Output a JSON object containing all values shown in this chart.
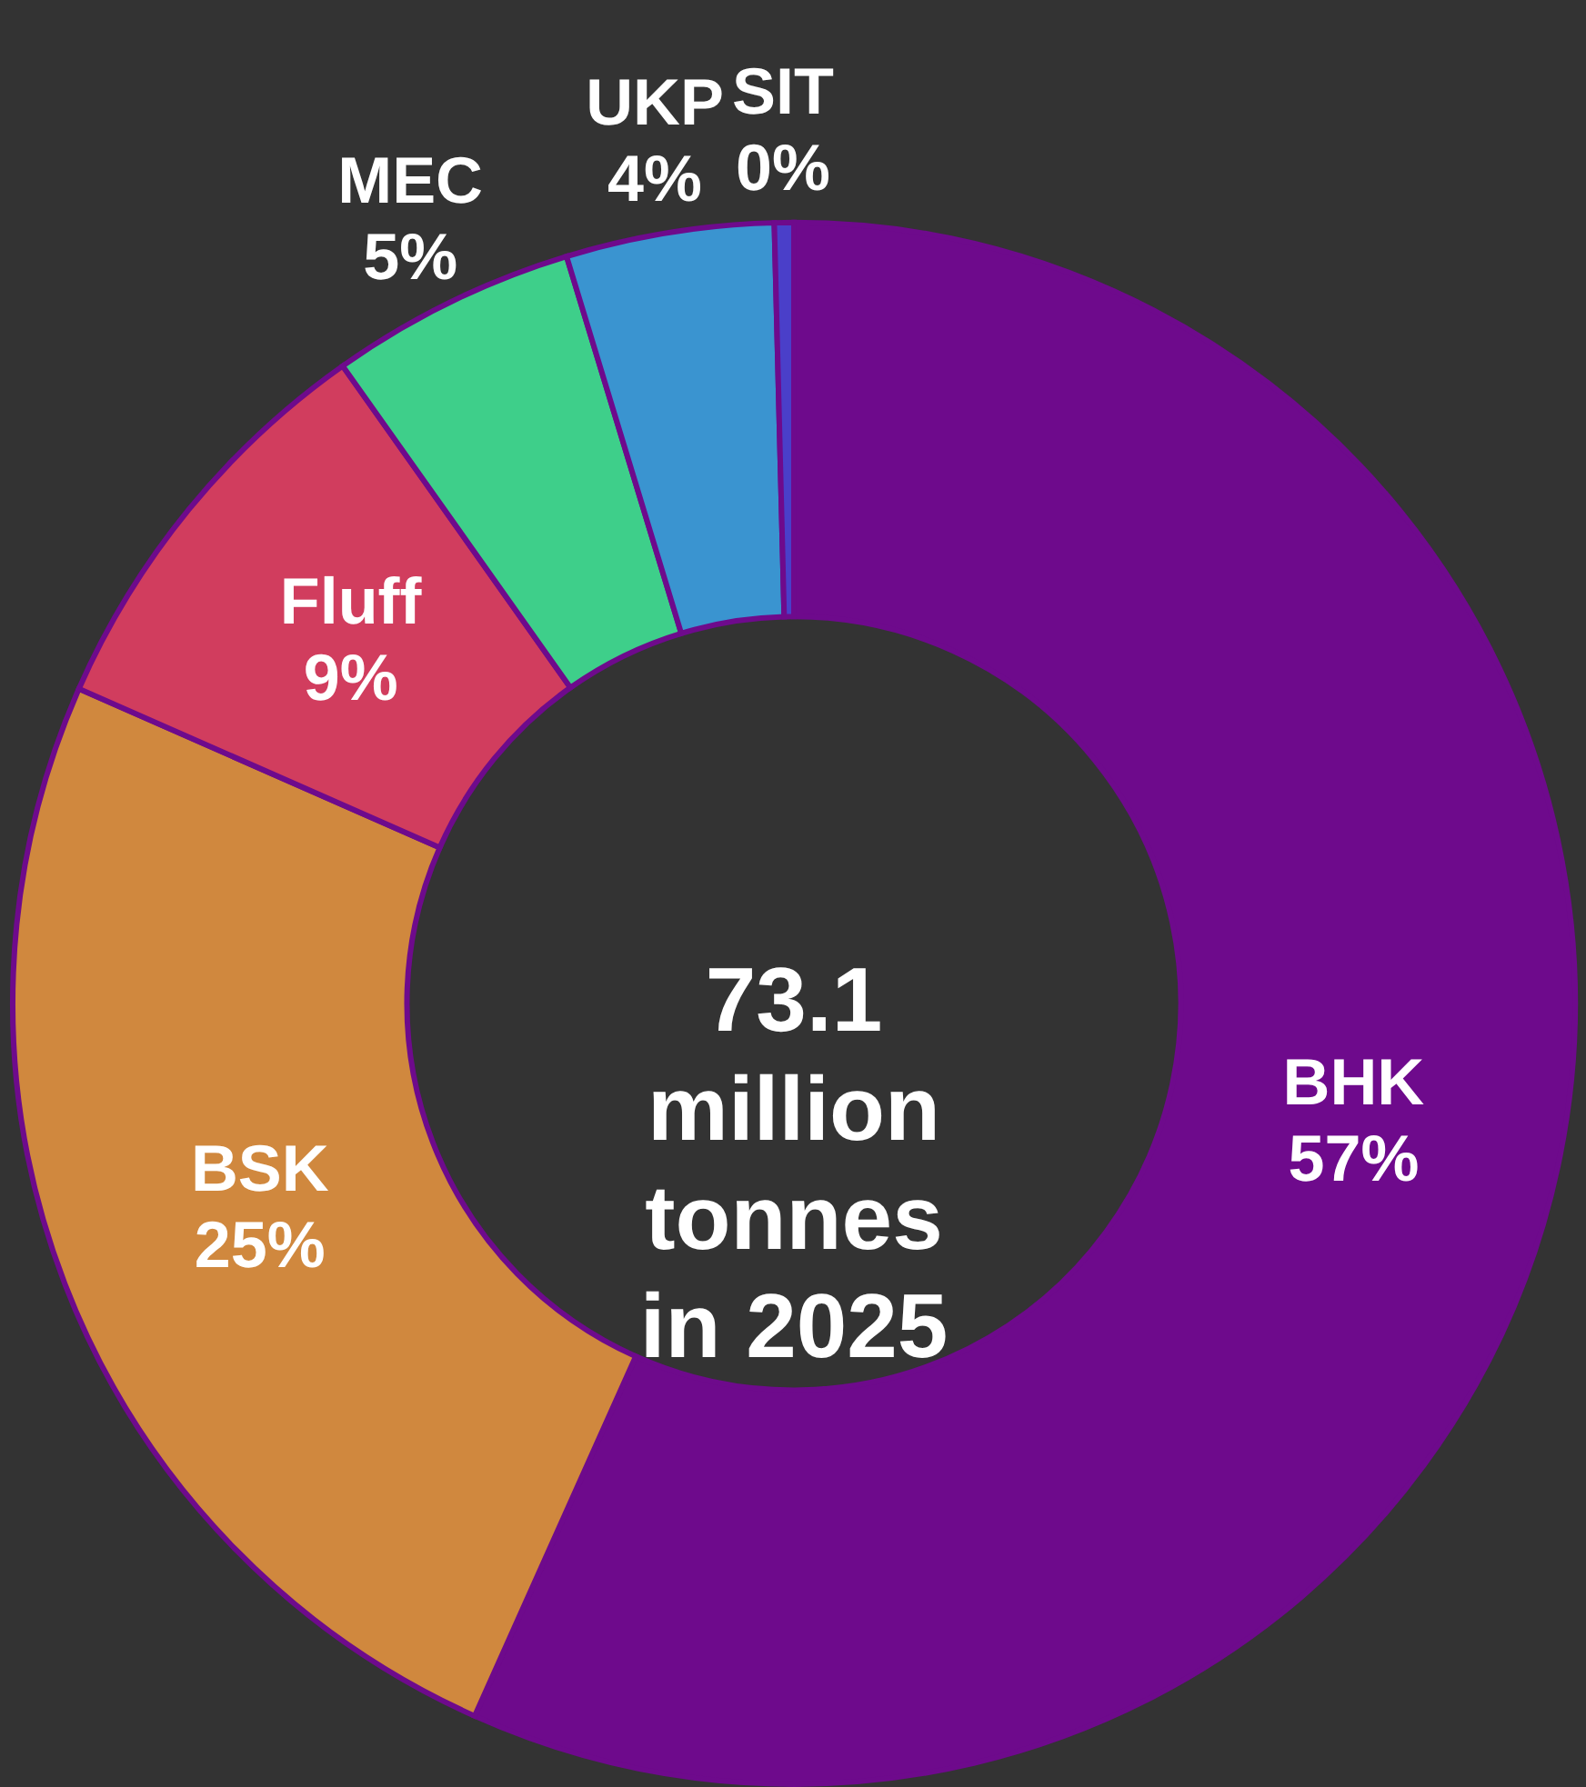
{
  "chart_data": {
    "type": "donut",
    "categories": [
      "BHK",
      "BSK",
      "Fluff",
      "MEC",
      "UKP",
      "SIT"
    ],
    "values": [
      56.7,
      24.9,
      8.6,
      5.1,
      4.3,
      0.4
    ],
    "value_labels": [
      "57%",
      "25%",
      "9%",
      "5%",
      "4%",
      "0%"
    ],
    "colors": [
      "#6e0a8c",
      "#d0883e",
      "#d13d5e",
      "#3ecf8a",
      "#3a94d0",
      "#4a3fc9"
    ],
    "annotations": [
      "73.1\nmillion\ntonnes\nin 2025"
    ]
  }
}
